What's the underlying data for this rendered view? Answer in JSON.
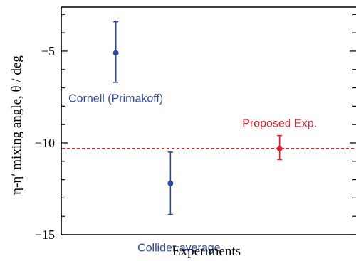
{
  "chart_data": {
    "type": "scatter",
    "title": "",
    "xlabel": "Experiments",
    "ylabel": "η-η′ mixing angle, θ / deg",
    "ylim": [
      -15,
      -2.6
    ],
    "yticks": [
      -15,
      -10,
      -5
    ],
    "ytick_labels": [
      "−15",
      "−10",
      "−5"
    ],
    "grid": false,
    "legend": "none",
    "points": [
      {
        "label": "Cornell (Primakoff)",
        "x": 1,
        "y": -5.1,
        "err_low": -6.7,
        "err_high": -3.4,
        "color": "#2b4aa6"
      },
      {
        "label": "Collider average",
        "x": 2,
        "y": -12.2,
        "err_low": -13.9,
        "err_high": -10.5,
        "color": "#2b4aa6"
      },
      {
        "label": "Proposed Exp.",
        "x": 4,
        "y": -10.3,
        "err_low": -10.9,
        "err_high": -9.6,
        "color": "#e31e24"
      }
    ],
    "reference_line": {
      "y": -10.3,
      "style": "dashed",
      "color": "#e31e24"
    },
    "xlim": [
      0,
      5.4
    ]
  }
}
